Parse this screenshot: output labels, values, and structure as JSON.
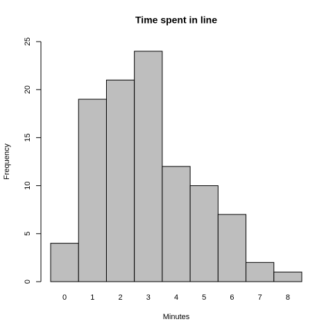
{
  "chart_data": {
    "type": "bar",
    "title": "Time spent in line",
    "x_label": "Minutes",
    "y_label": "Frequency",
    "categories": [
      "0",
      "1",
      "2",
      "3",
      "4",
      "5",
      "6",
      "7",
      "8"
    ],
    "values": [
      4,
      19,
      21,
      24,
      12,
      10,
      7,
      2,
      1
    ],
    "color": "#bebebe",
    "ylim": [
      0,
      25
    ],
    "yticks": [
      0,
      5,
      10,
      15,
      20,
      25
    ]
  }
}
